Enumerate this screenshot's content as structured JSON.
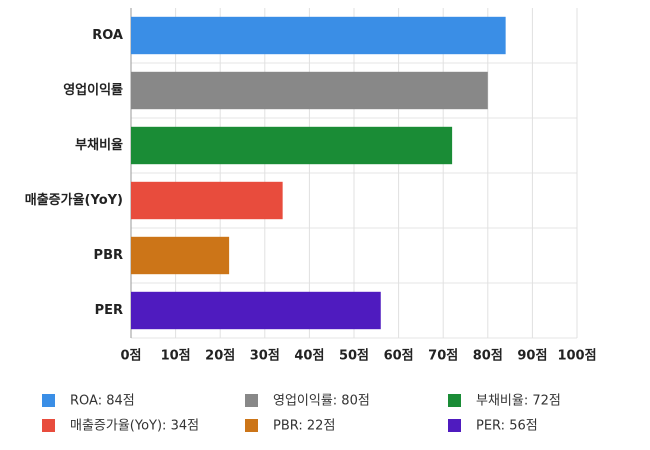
{
  "chart_data": {
    "type": "barh",
    "categories": [
      "ROA",
      "영업이익률",
      "부채비율",
      "매출증가율(YoY)",
      "PBR",
      "PER"
    ],
    "values": [
      84,
      80,
      72,
      34,
      22,
      56
    ],
    "colors": [
      "#3a8ee6",
      "#888888",
      "#1a8c36",
      "#e84c3d",
      "#cc7518",
      "#4f1bbf"
    ],
    "legend_labels": [
      "ROA: 84점",
      "영업이익률: 80점",
      "부채비율: 72점",
      "매출증가율(YoY): 34점",
      "PBR: 22점",
      "PER: 56점"
    ],
    "xlim": [
      0,
      100
    ],
    "xticks": [
      {
        "value": 0,
        "label": "0점"
      },
      {
        "value": 10,
        "label": "10점"
      },
      {
        "value": 20,
        "label": "20점"
      },
      {
        "value": 30,
        "label": "30점"
      },
      {
        "value": 40,
        "label": "40점"
      },
      {
        "value": 50,
        "label": "50점"
      },
      {
        "value": 60,
        "label": "60점"
      },
      {
        "value": 70,
        "label": "70점"
      },
      {
        "value": 80,
        "label": "80점"
      },
      {
        "value": 90,
        "label": "90점"
      },
      {
        "value": 100,
        "label": "100점"
      }
    ],
    "grid": true
  }
}
